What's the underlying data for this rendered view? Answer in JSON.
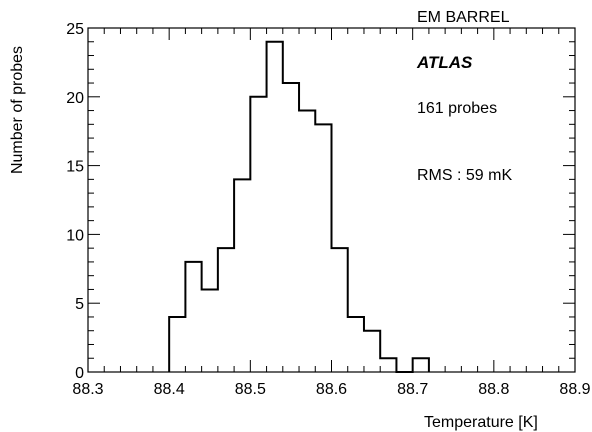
{
  "chart_data": {
    "type": "histogram",
    "title": "EM BARREL",
    "xlabel": "Temperature [K]",
    "ylabel": "Number of probes",
    "xlim": [
      88.3,
      88.9
    ],
    "ylim": [
      0,
      25
    ],
    "bin_width": 0.02,
    "bin_edges": [
      88.4,
      88.42,
      88.44,
      88.46,
      88.48,
      88.5,
      88.52,
      88.54,
      88.56,
      88.58,
      88.6,
      88.62,
      88.64,
      88.66,
      88.68,
      88.7,
      88.72
    ],
    "values": [
      4,
      8,
      6,
      9,
      14,
      20,
      24,
      21,
      19,
      18,
      9,
      4,
      3,
      1,
      0,
      1
    ],
    "x_ticks": [
      "88.3",
      "88.4",
      "88.5",
      "88.6",
      "88.7",
      "88.8",
      "88.9"
    ],
    "y_ticks": [
      "0",
      "5",
      "10",
      "15",
      "20",
      "25"
    ],
    "x_tick_values": [
      88.3,
      88.4,
      88.5,
      88.6,
      88.7,
      88.8,
      88.9
    ],
    "y_tick_values": [
      0,
      5,
      10,
      15,
      20,
      25
    ],
    "x_minor_step": 0.02,
    "y_minor_step": 1,
    "grid": false,
    "annotations": {
      "experiment": "ATLAS",
      "count": "161 probes",
      "rms": "RMS : 59 mK"
    },
    "line_color": "#000000"
  }
}
